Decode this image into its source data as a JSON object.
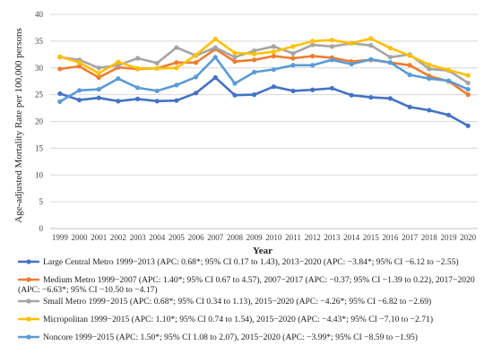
{
  "chart_data": {
    "type": "line",
    "ylabel": "Age-adjusted Mortality Rate per 100,000 persons",
    "xlabel": "Year",
    "ylim": [
      0,
      40
    ],
    "y_ticks": [
      0,
      5,
      10,
      15,
      20,
      25,
      30,
      35,
      40
    ],
    "grid": "horizontal",
    "legend_position": "bottom",
    "categories": [
      "1999",
      "2000",
      "2001",
      "2002",
      "2003",
      "2004",
      "2005",
      "2006",
      "2007",
      "2008",
      "2009",
      "2010",
      "2011",
      "2012",
      "2013",
      "2014",
      "2015",
      "2016",
      "2017",
      "2018",
      "2019",
      "2020"
    ],
    "series": [
      {
        "name": "Large Central Metro",
        "color": "#4472C4",
        "values": [
          25.2,
          24.0,
          24.4,
          23.8,
          24.2,
          23.8,
          23.9,
          25.3,
          28.2,
          24.9,
          25.0,
          26.5,
          25.7,
          25.9,
          26.2,
          24.9,
          24.5,
          24.3,
          22.7,
          22.1,
          21.2,
          19.2
        ]
      },
      {
        "name": "Medium Metro",
        "color": "#ED7D31",
        "values": [
          29.8,
          30.3,
          28.2,
          30.1,
          29.8,
          29.9,
          31.0,
          31.0,
          33.5,
          31.2,
          31.5,
          32.2,
          31.8,
          32.2,
          31.9,
          31.2,
          31.5,
          31.0,
          30.5,
          28.5,
          27.5,
          25.0
        ]
      },
      {
        "name": "Small Metro",
        "color": "#A5A5A5",
        "values": [
          32.0,
          31.5,
          30.0,
          30.5,
          31.8,
          30.9,
          33.8,
          32.3,
          33.8,
          32.0,
          33.2,
          34.0,
          32.7,
          34.3,
          34.0,
          34.6,
          34.2,
          32.0,
          32.5,
          29.8,
          29.5,
          27.2
        ]
      },
      {
        "name": "Micropolitan",
        "color": "#FFC000",
        "values": [
          32.1,
          31.0,
          29.0,
          31.1,
          29.9,
          29.9,
          30.0,
          32.4,
          35.4,
          32.8,
          32.6,
          33.0,
          34.0,
          35.0,
          35.2,
          34.6,
          35.5,
          33.7,
          32.3,
          30.6,
          29.6,
          28.6
        ]
      },
      {
        "name": "Noncore",
        "color": "#5B9BD5",
        "values": [
          23.7,
          25.8,
          26.0,
          28.0,
          26.3,
          25.7,
          26.8,
          28.3,
          32.0,
          27.1,
          29.2,
          29.7,
          30.5,
          30.5,
          31.5,
          30.7,
          31.6,
          31.0,
          28.7,
          28.0,
          27.6,
          26.0
        ]
      }
    ]
  },
  "legend": [
    {
      "text": "Large Central Metro 1999−2013 (APC: 0.68*; 95% CI 0.17 to 1.43), 2013−2020 (APC: −3.84*; 95% CI −6.12 to −2.55)"
    },
    {
      "text": "Medium Metro 1999−2007 (APC: 1.40*; 95% CI 0.67 to 4.57), 2007−2017 (APC: −0.37; 95% CI −1.39 to 0.22), 2017−2020",
      "text2": "(APC: −6.63*; 95% CI −10.50 to −4.17)"
    },
    {
      "text": "Small Metro 1999−2015 (APC: 0.68*; 95% CI 0.34 to 1.13), 2015−2020 (APC: −4.26*; 95% CI −6.82 to −2.69)"
    },
    {
      "text": "Micropolitan 1999−2015 (APC: 1.10*; 95% CI 0.74 to 1.54), 2015−2020 (APC: −4.43*; 95% CI −7.10 to −2.71)"
    },
    {
      "text": "Noncore 1999−2015 (APC: 1.50*; 95% CI 1.08 to 2.07), 2015−2020 (APC: −3.99*; 95% CI −8.59 to −1.95)"
    }
  ]
}
